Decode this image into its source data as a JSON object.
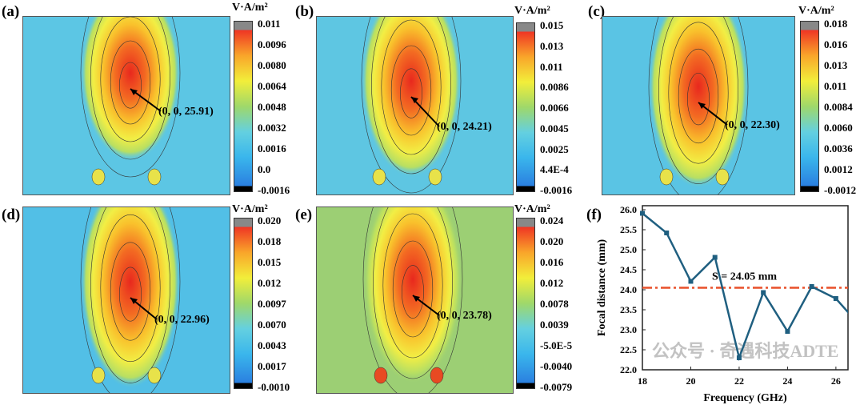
{
  "panels": [
    {
      "label": "(a)",
      "unit": "V·A/m²",
      "ticks": [
        "0.011",
        "0.0096",
        "0.0080",
        "0.0064",
        "0.0048",
        "0.0032",
        "0.0016",
        "0.0",
        "-0.0016"
      ],
      "annotation": "(0, 0, 25.91)",
      "bg": "#5cc6e4"
    },
    {
      "label": "(b)",
      "unit": "V·A/m²",
      "ticks": [
        "0.015",
        "0.013",
        "0.011",
        "0.0086",
        "0.0066",
        "0.0045",
        "0.0025",
        "4.4E-4",
        "-0.0016"
      ],
      "annotation": "(0, 0, 24.21)",
      "bg": "#5ec6e2"
    },
    {
      "label": "(c)",
      "unit": "V·A/m²",
      "ticks": [
        "0.018",
        "0.016",
        "0.013",
        "0.011",
        "0.0084",
        "0.0060",
        "0.0036",
        "0.0012",
        "-0.0012"
      ],
      "annotation": "(0, 0, 22.30)",
      "bg": "#5ac4e4"
    },
    {
      "label": "(d)",
      "unit": "V·A/m²",
      "ticks": [
        "0.020",
        "0.018",
        "0.015",
        "0.012",
        "0.0097",
        "0.0070",
        "0.0043",
        "0.0017",
        "-0.0010"
      ],
      "annotation": "(0, 0, 22.96)",
      "bg": "#52bfe6"
    },
    {
      "label": "(e)",
      "unit": "V·A/m²",
      "ticks": [
        "0.024",
        "0.020",
        "0.016",
        "0.012",
        "0.0078",
        "0.0039",
        "-5.0E-5",
        "-0.0040",
        "-0.0079"
      ],
      "annotation": "(0, 0, 23.78)",
      "bg": "#9ccf74"
    }
  ],
  "chart_data": {
    "label": "(f)",
    "type": "line",
    "x": [
      18,
      19,
      20,
      21,
      22,
      23,
      24,
      25,
      26,
      27
    ],
    "values": [
      25.91,
      25.42,
      24.21,
      24.81,
      22.3,
      23.93,
      22.96,
      24.08,
      23.78,
      23.1
    ],
    "xlabel": "Frequency (GHz)",
    "ylabel": "Focal distance (mm)",
    "xlim": [
      18,
      26.5
    ],
    "ylim": [
      22.0,
      26.1
    ],
    "xticks": [
      "18",
      "20",
      "22",
      "24",
      "26"
    ],
    "yticks": [
      "22.0",
      "22.5",
      "23.0",
      "23.5",
      "24.0",
      "24.5",
      "25.0",
      "25.5",
      "26.0"
    ],
    "reference_line": {
      "value": 24.05,
      "label": "S = 24.05 mm",
      "color": "#e8502a"
    },
    "line_color": "#1f5f80"
  },
  "watermark": "公众号 · 奇遇科技ADTE"
}
